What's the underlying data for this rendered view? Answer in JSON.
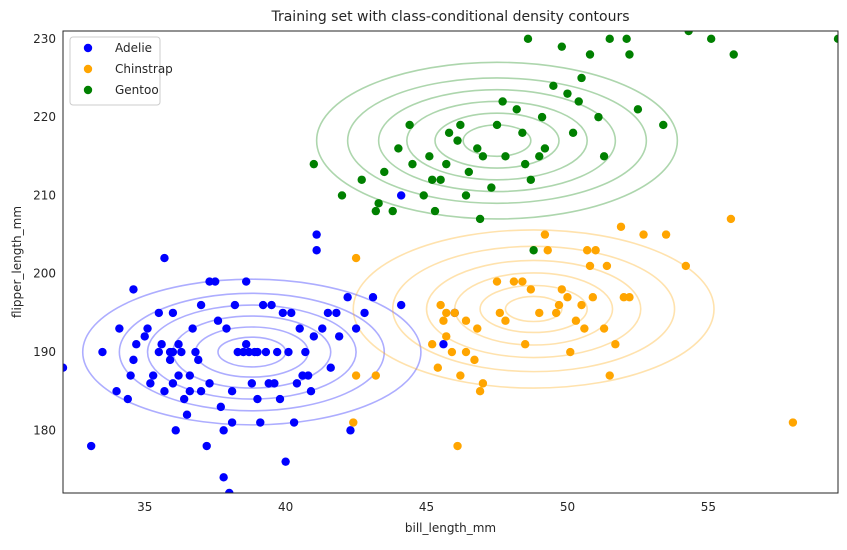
{
  "chart_data": {
    "type": "scatter",
    "title": "Training set with class-conditional density contours",
    "xlabel": "bill_length_mm",
    "ylabel": "flipper_length_mm",
    "xlim": [
      32.1,
      59.6
    ],
    "ylim": [
      172,
      231
    ],
    "xticks": [
      35,
      40,
      45,
      50,
      55
    ],
    "yticks": [
      180,
      190,
      200,
      210,
      220,
      230
    ],
    "grid": false,
    "legend_position": "top-left",
    "series": [
      {
        "name": "Adelie",
        "color": "#0000ff",
        "contour_center": [
          38.8,
          190.0
        ],
        "contour_radii": [
          [
            1.2,
            1.9
          ],
          [
            2.0,
            3.2
          ],
          [
            2.8,
            4.6
          ],
          [
            3.7,
            6.0
          ],
          [
            4.7,
            7.5
          ],
          [
            6.0,
            9.3
          ]
        ],
        "points": [
          [
            32.1,
            188
          ],
          [
            33.1,
            178
          ],
          [
            33.5,
            190
          ],
          [
            34.0,
            185
          ],
          [
            34.1,
            193
          ],
          [
            34.4,
            184
          ],
          [
            34.5,
            187
          ],
          [
            34.6,
            198
          ],
          [
            34.6,
            189
          ],
          [
            34.7,
            191
          ],
          [
            35.0,
            192
          ],
          [
            35.1,
            193
          ],
          [
            35.2,
            186
          ],
          [
            35.3,
            187
          ],
          [
            35.5,
            190
          ],
          [
            35.5,
            195
          ],
          [
            35.6,
            191
          ],
          [
            35.7,
            185
          ],
          [
            35.7,
            202
          ],
          [
            35.9,
            190
          ],
          [
            35.9,
            189
          ],
          [
            36.0,
            186
          ],
          [
            36.0,
            190
          ],
          [
            36.0,
            195
          ],
          [
            36.1,
            180
          ],
          [
            36.2,
            187
          ],
          [
            36.2,
            191
          ],
          [
            36.3,
            190
          ],
          [
            36.4,
            184
          ],
          [
            36.5,
            182
          ],
          [
            36.6,
            185
          ],
          [
            36.6,
            187
          ],
          [
            36.7,
            193
          ],
          [
            36.8,
            190
          ],
          [
            36.9,
            189
          ],
          [
            37.0,
            185
          ],
          [
            37.0,
            196
          ],
          [
            37.2,
            178
          ],
          [
            37.3,
            199
          ],
          [
            37.3,
            186
          ],
          [
            37.5,
            199
          ],
          [
            37.6,
            194
          ],
          [
            37.7,
            183
          ],
          [
            37.8,
            180
          ],
          [
            37.8,
            174
          ],
          [
            37.9,
            193
          ],
          [
            38.0,
            172
          ],
          [
            38.1,
            181
          ],
          [
            38.1,
            185
          ],
          [
            38.2,
            196
          ],
          [
            38.3,
            190
          ],
          [
            38.5,
            190
          ],
          [
            38.6,
            199
          ],
          [
            38.6,
            191
          ],
          [
            38.7,
            190
          ],
          [
            38.8,
            186
          ],
          [
            38.9,
            190
          ],
          [
            39.0,
            184
          ],
          [
            39.0,
            190
          ],
          [
            39.1,
            181
          ],
          [
            39.2,
            196
          ],
          [
            39.3,
            190
          ],
          [
            39.4,
            186
          ],
          [
            39.5,
            196
          ],
          [
            39.6,
            186
          ],
          [
            39.7,
            190
          ],
          [
            39.8,
            184
          ],
          [
            39.9,
            195
          ],
          [
            40.0,
            176
          ],
          [
            40.1,
            190
          ],
          [
            40.2,
            195
          ],
          [
            40.3,
            181
          ],
          [
            40.4,
            186
          ],
          [
            40.5,
            193
          ],
          [
            40.6,
            187
          ],
          [
            40.7,
            190
          ],
          [
            40.8,
            187
          ],
          [
            40.9,
            185
          ],
          [
            41.0,
            192
          ],
          [
            41.1,
            203
          ],
          [
            41.1,
            205
          ],
          [
            41.3,
            193
          ],
          [
            41.5,
            195
          ],
          [
            41.6,
            188
          ],
          [
            41.8,
            195
          ],
          [
            41.9,
            192
          ],
          [
            42.2,
            197
          ],
          [
            42.3,
            180
          ],
          [
            42.5,
            193
          ],
          [
            42.8,
            195
          ],
          [
            43.1,
            197
          ],
          [
            44.1,
            210
          ],
          [
            44.1,
            196
          ],
          [
            45.6,
            191
          ],
          [
            46.0,
            195
          ]
        ]
      },
      {
        "name": "Chinstrap",
        "color": "#ffa500",
        "contour_center": [
          48.8,
          195.5
        ],
        "contour_radii": [
          [
            1.0,
            1.6
          ],
          [
            1.9,
            3.0
          ],
          [
            2.8,
            4.6
          ],
          [
            3.8,
            6.2
          ],
          [
            5.0,
            8.0
          ],
          [
            6.4,
            10.1
          ]
        ],
        "points": [
          [
            42.4,
            181
          ],
          [
            42.5,
            187
          ],
          [
            42.5,
            202
          ],
          [
            43.2,
            187
          ],
          [
            45.2,
            191
          ],
          [
            45.4,
            188
          ],
          [
            45.5,
            196
          ],
          [
            45.6,
            194
          ],
          [
            45.7,
            192
          ],
          [
            45.7,
            195
          ],
          [
            45.9,
            190
          ],
          [
            46.0,
            195
          ],
          [
            46.1,
            178
          ],
          [
            46.2,
            187
          ],
          [
            46.4,
            190
          ],
          [
            46.4,
            194
          ],
          [
            46.7,
            189
          ],
          [
            46.8,
            193
          ],
          [
            46.9,
            185
          ],
          [
            47.0,
            186
          ],
          [
            47.5,
            199
          ],
          [
            47.6,
            195
          ],
          [
            47.8,
            194
          ],
          [
            48.1,
            199
          ],
          [
            48.4,
            199
          ],
          [
            48.5,
            191
          ],
          [
            48.7,
            198
          ],
          [
            49.0,
            195
          ],
          [
            49.2,
            205
          ],
          [
            49.3,
            203
          ],
          [
            49.6,
            195
          ],
          [
            49.7,
            196
          ],
          [
            49.8,
            198
          ],
          [
            50.0,
            197
          ],
          [
            50.1,
            190
          ],
          [
            50.3,
            194
          ],
          [
            50.5,
            196
          ],
          [
            50.6,
            193
          ],
          [
            50.7,
            203
          ],
          [
            50.8,
            201
          ],
          [
            50.9,
            197
          ],
          [
            51.0,
            203
          ],
          [
            51.3,
            193
          ],
          [
            51.4,
            201
          ],
          [
            51.5,
            187
          ],
          [
            51.7,
            191
          ],
          [
            51.9,
            206
          ],
          [
            52.0,
            197
          ],
          [
            52.2,
            197
          ],
          [
            52.7,
            205
          ],
          [
            53.5,
            205
          ],
          [
            54.2,
            201
          ],
          [
            55.8,
            207
          ],
          [
            58.0,
            181
          ]
        ]
      },
      {
        "name": "Gentoo",
        "color": "#008000",
        "contour_center": [
          47.5,
          217.0
        ],
        "contour_radii": [
          [
            1.2,
            2.0
          ],
          [
            2.2,
            3.5
          ],
          [
            3.2,
            5.0
          ],
          [
            4.2,
            6.5
          ],
          [
            5.3,
            8.0
          ],
          [
            6.4,
            10.0
          ]
        ],
        "points": [
          [
            41.0,
            214
          ],
          [
            42.0,
            210
          ],
          [
            42.7,
            212
          ],
          [
            43.2,
            208
          ],
          [
            43.3,
            209
          ],
          [
            43.5,
            213
          ],
          [
            43.8,
            208
          ],
          [
            44.0,
            216
          ],
          [
            44.4,
            219
          ],
          [
            44.5,
            214
          ],
          [
            44.9,
            210
          ],
          [
            45.1,
            215
          ],
          [
            45.2,
            212
          ],
          [
            45.3,
            208
          ],
          [
            45.5,
            212
          ],
          [
            45.7,
            214
          ],
          [
            45.8,
            218
          ],
          [
            46.1,
            217
          ],
          [
            46.2,
            219
          ],
          [
            46.4,
            210
          ],
          [
            46.5,
            213
          ],
          [
            46.8,
            216
          ],
          [
            47.0,
            215
          ],
          [
            47.3,
            211
          ],
          [
            47.5,
            219
          ],
          [
            47.7,
            222
          ],
          [
            47.8,
            215
          ],
          [
            48.2,
            221
          ],
          [
            48.4,
            218
          ],
          [
            48.5,
            214
          ],
          [
            48.7,
            212
          ],
          [
            49.1,
            220
          ],
          [
            49.2,
            216
          ],
          [
            49.5,
            224
          ],
          [
            49.8,
            229
          ],
          [
            50.0,
            223
          ],
          [
            50.2,
            218
          ],
          [
            50.4,
            222
          ],
          [
            50.5,
            225
          ],
          [
            50.8,
            228
          ],
          [
            51.1,
            220
          ],
          [
            51.3,
            215
          ],
          [
            51.5,
            230
          ],
          [
            52.1,
            230
          ],
          [
            52.2,
            228
          ],
          [
            52.5,
            221
          ],
          [
            53.4,
            219
          ],
          [
            54.3,
            231
          ],
          [
            55.1,
            230
          ],
          [
            55.9,
            228
          ],
          [
            59.6,
            230
          ],
          [
            48.6,
            230
          ],
          [
            49.0,
            215
          ],
          [
            46.9,
            207
          ],
          [
            48.8,
            203
          ]
        ]
      }
    ]
  }
}
